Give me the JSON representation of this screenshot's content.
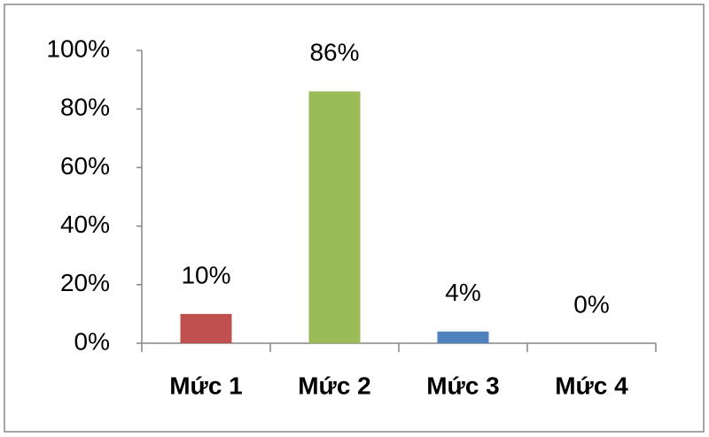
{
  "chart_data": {
    "type": "bar",
    "categories": [
      "Mức 1",
      "Mức 2",
      "Mức 3",
      "Mức 4"
    ],
    "values": [
      10,
      86,
      4,
      0
    ],
    "value_labels": [
      "10%",
      "86%",
      "4%",
      "0%"
    ],
    "colors": [
      "#c0504d",
      "#9bbb59",
      "#4f81bd",
      "#8064a2"
    ],
    "ylim": [
      0,
      100
    ],
    "yticks": [
      {
        "value": 0,
        "label": "0%"
      },
      {
        "value": 20,
        "label": "20%"
      },
      {
        "value": 40,
        "label": "40%"
      },
      {
        "value": 60,
        "label": "60%"
      },
      {
        "value": 80,
        "label": "80%"
      },
      {
        "value": 100,
        "label": "100%"
      }
    ],
    "grid": false
  }
}
